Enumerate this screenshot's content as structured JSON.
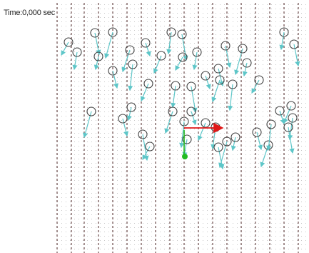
{
  "status": {
    "time_label": "Time:0,000 sec"
  },
  "colors": {
    "background": "#ffffff",
    "vector_field_dots": "#9a9a9a",
    "vortex_lines": "#6a4a4a",
    "particle_outline": "#404040",
    "particle_velocity": "#5ec6c8",
    "probe_force": "#e01818",
    "probe_marker": "#22bb22"
  },
  "icons": {
    "particle": "open-circle-icon",
    "velocity": "cyan-arrow-icon",
    "force": "red-arrow-icon",
    "probe": "green-dot-icon"
  }
}
